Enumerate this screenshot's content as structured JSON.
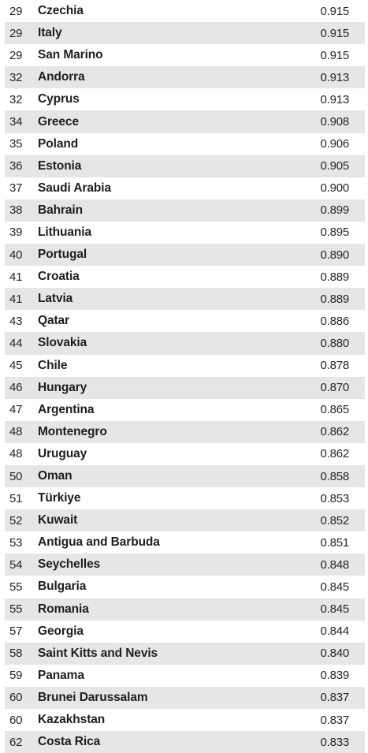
{
  "rows": [
    {
      "rank": "29",
      "country": "Czechia",
      "value": "0.915"
    },
    {
      "rank": "29",
      "country": "Italy",
      "value": "0.915"
    },
    {
      "rank": "29",
      "country": "San Marino",
      "value": "0.915"
    },
    {
      "rank": "32",
      "country": "Andorra",
      "value": "0.913"
    },
    {
      "rank": "32",
      "country": "Cyprus",
      "value": "0.913"
    },
    {
      "rank": "34",
      "country": "Greece",
      "value": "0.908"
    },
    {
      "rank": "35",
      "country": "Poland",
      "value": "0.906"
    },
    {
      "rank": "36",
      "country": "Estonia",
      "value": "0.905"
    },
    {
      "rank": "37",
      "country": "Saudi Arabia",
      "value": "0.900"
    },
    {
      "rank": "38",
      "country": "Bahrain",
      "value": "0.899"
    },
    {
      "rank": "39",
      "country": "Lithuania",
      "value": "0.895"
    },
    {
      "rank": "40",
      "country": "Portugal",
      "value": "0.890"
    },
    {
      "rank": "41",
      "country": "Croatia",
      "value": "0.889"
    },
    {
      "rank": "41",
      "country": "Latvia",
      "value": "0.889"
    },
    {
      "rank": "43",
      "country": "Qatar",
      "value": "0.886"
    },
    {
      "rank": "44",
      "country": "Slovakia",
      "value": "0.880"
    },
    {
      "rank": "45",
      "country": "Chile",
      "value": "0.878"
    },
    {
      "rank": "46",
      "country": "Hungary",
      "value": "0.870"
    },
    {
      "rank": "47",
      "country": "Argentina",
      "value": "0.865"
    },
    {
      "rank": "48",
      "country": "Montenegro",
      "value": "0.862"
    },
    {
      "rank": "48",
      "country": "Uruguay",
      "value": "0.862"
    },
    {
      "rank": "50",
      "country": "Oman",
      "value": "0.858"
    },
    {
      "rank": "51",
      "country": "Türkiye",
      "value": "0.853"
    },
    {
      "rank": "52",
      "country": "Kuwait",
      "value": "0.852"
    },
    {
      "rank": "53",
      "country": "Antigua and Barbuda",
      "value": "0.851"
    },
    {
      "rank": "54",
      "country": "Seychelles",
      "value": "0.848"
    },
    {
      "rank": "55",
      "country": "Bulgaria",
      "value": "0.845"
    },
    {
      "rank": "55",
      "country": "Romania",
      "value": "0.845"
    },
    {
      "rank": "57",
      "country": "Georgia",
      "value": "0.844"
    },
    {
      "rank": "58",
      "country": "Saint Kitts and Nevis",
      "value": "0.840"
    },
    {
      "rank": "59",
      "country": "Panama",
      "value": "0.839"
    },
    {
      "rank": "60",
      "country": "Brunei Darussalam",
      "value": "0.837"
    },
    {
      "rank": "60",
      "country": "Kazakhstan",
      "value": "0.837"
    },
    {
      "rank": "62",
      "country": "Costa Rica",
      "value": "0.833"
    }
  ],
  "colors": {
    "stripe": "#e6e6e6",
    "text": "#1e1e1e",
    "background": "#ffffff"
  }
}
